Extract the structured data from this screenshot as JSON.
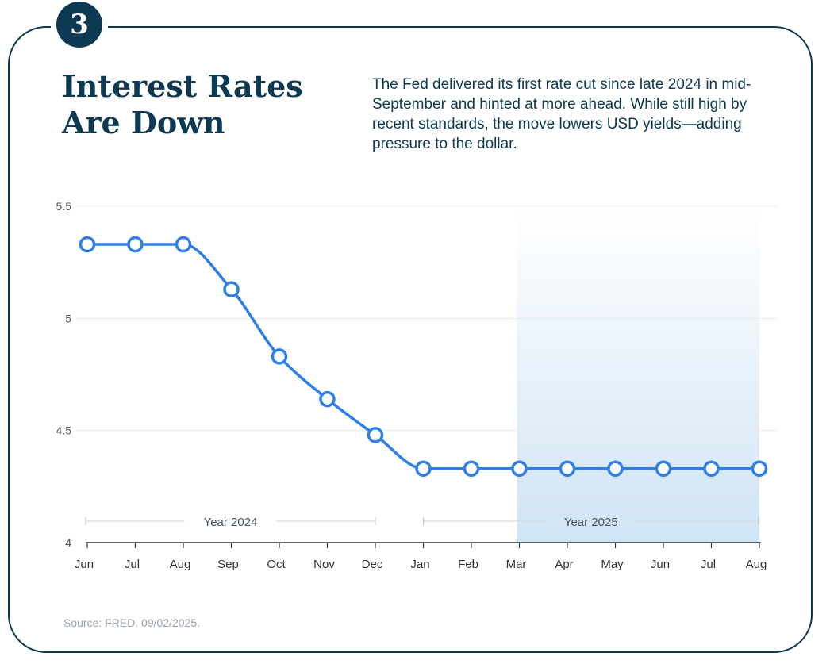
{
  "header": {
    "badge_number": "3",
    "title_line1": "Interest Rates",
    "title_line2": "Are Down",
    "description": "The Fed delivered its first rate cut since late 2024 in mid-September and hinted at more ahead. While still high by recent standards, the move lowers USD yields—adding pressure to the dollar."
  },
  "footer": {
    "source": "Source: FRED. 09/02/2025."
  },
  "colors": {
    "brand": "#0d3a52",
    "line": "#2f7fe8",
    "grid": "#e8ecef",
    "shade_top": "#ffffff",
    "shade_bottom": "#cfe4f4"
  },
  "chart_data": {
    "type": "line",
    "title": "",
    "xlabel": "",
    "ylabel": "",
    "categories": [
      "Jun",
      "Jul",
      "Aug",
      "Sep",
      "Oct",
      "Nov",
      "Dec",
      "Jan",
      "Feb",
      "Mar",
      "Apr",
      "May",
      "Jun",
      "Jul",
      "Aug"
    ],
    "series": [
      {
        "values": [
          5.33,
          5.33,
          5.33,
          5.13,
          4.83,
          4.64,
          4.48,
          4.33,
          4.33,
          4.33,
          4.33,
          4.33,
          4.33,
          4.33,
          4.33
        ]
      }
    ],
    "ylim": [
      4,
      5.5
    ],
    "yticks": [
      "4",
      "4.5",
      "5",
      "5.5"
    ],
    "ytick_values": [
      4,
      4.5,
      5,
      5.5
    ],
    "grid": true,
    "period_brackets": [
      {
        "label": "Year 2024",
        "from": "Jun",
        "to": "Dec",
        "from_index": 0,
        "to_index": 6
      },
      {
        "label": "Year 2025",
        "from": "Jan",
        "to": "Aug",
        "from_index": 7,
        "to_index": 14
      }
    ],
    "shaded_range": {
      "from": "Mar",
      "to": "Aug",
      "from_index": 9,
      "to_index": 14
    }
  }
}
